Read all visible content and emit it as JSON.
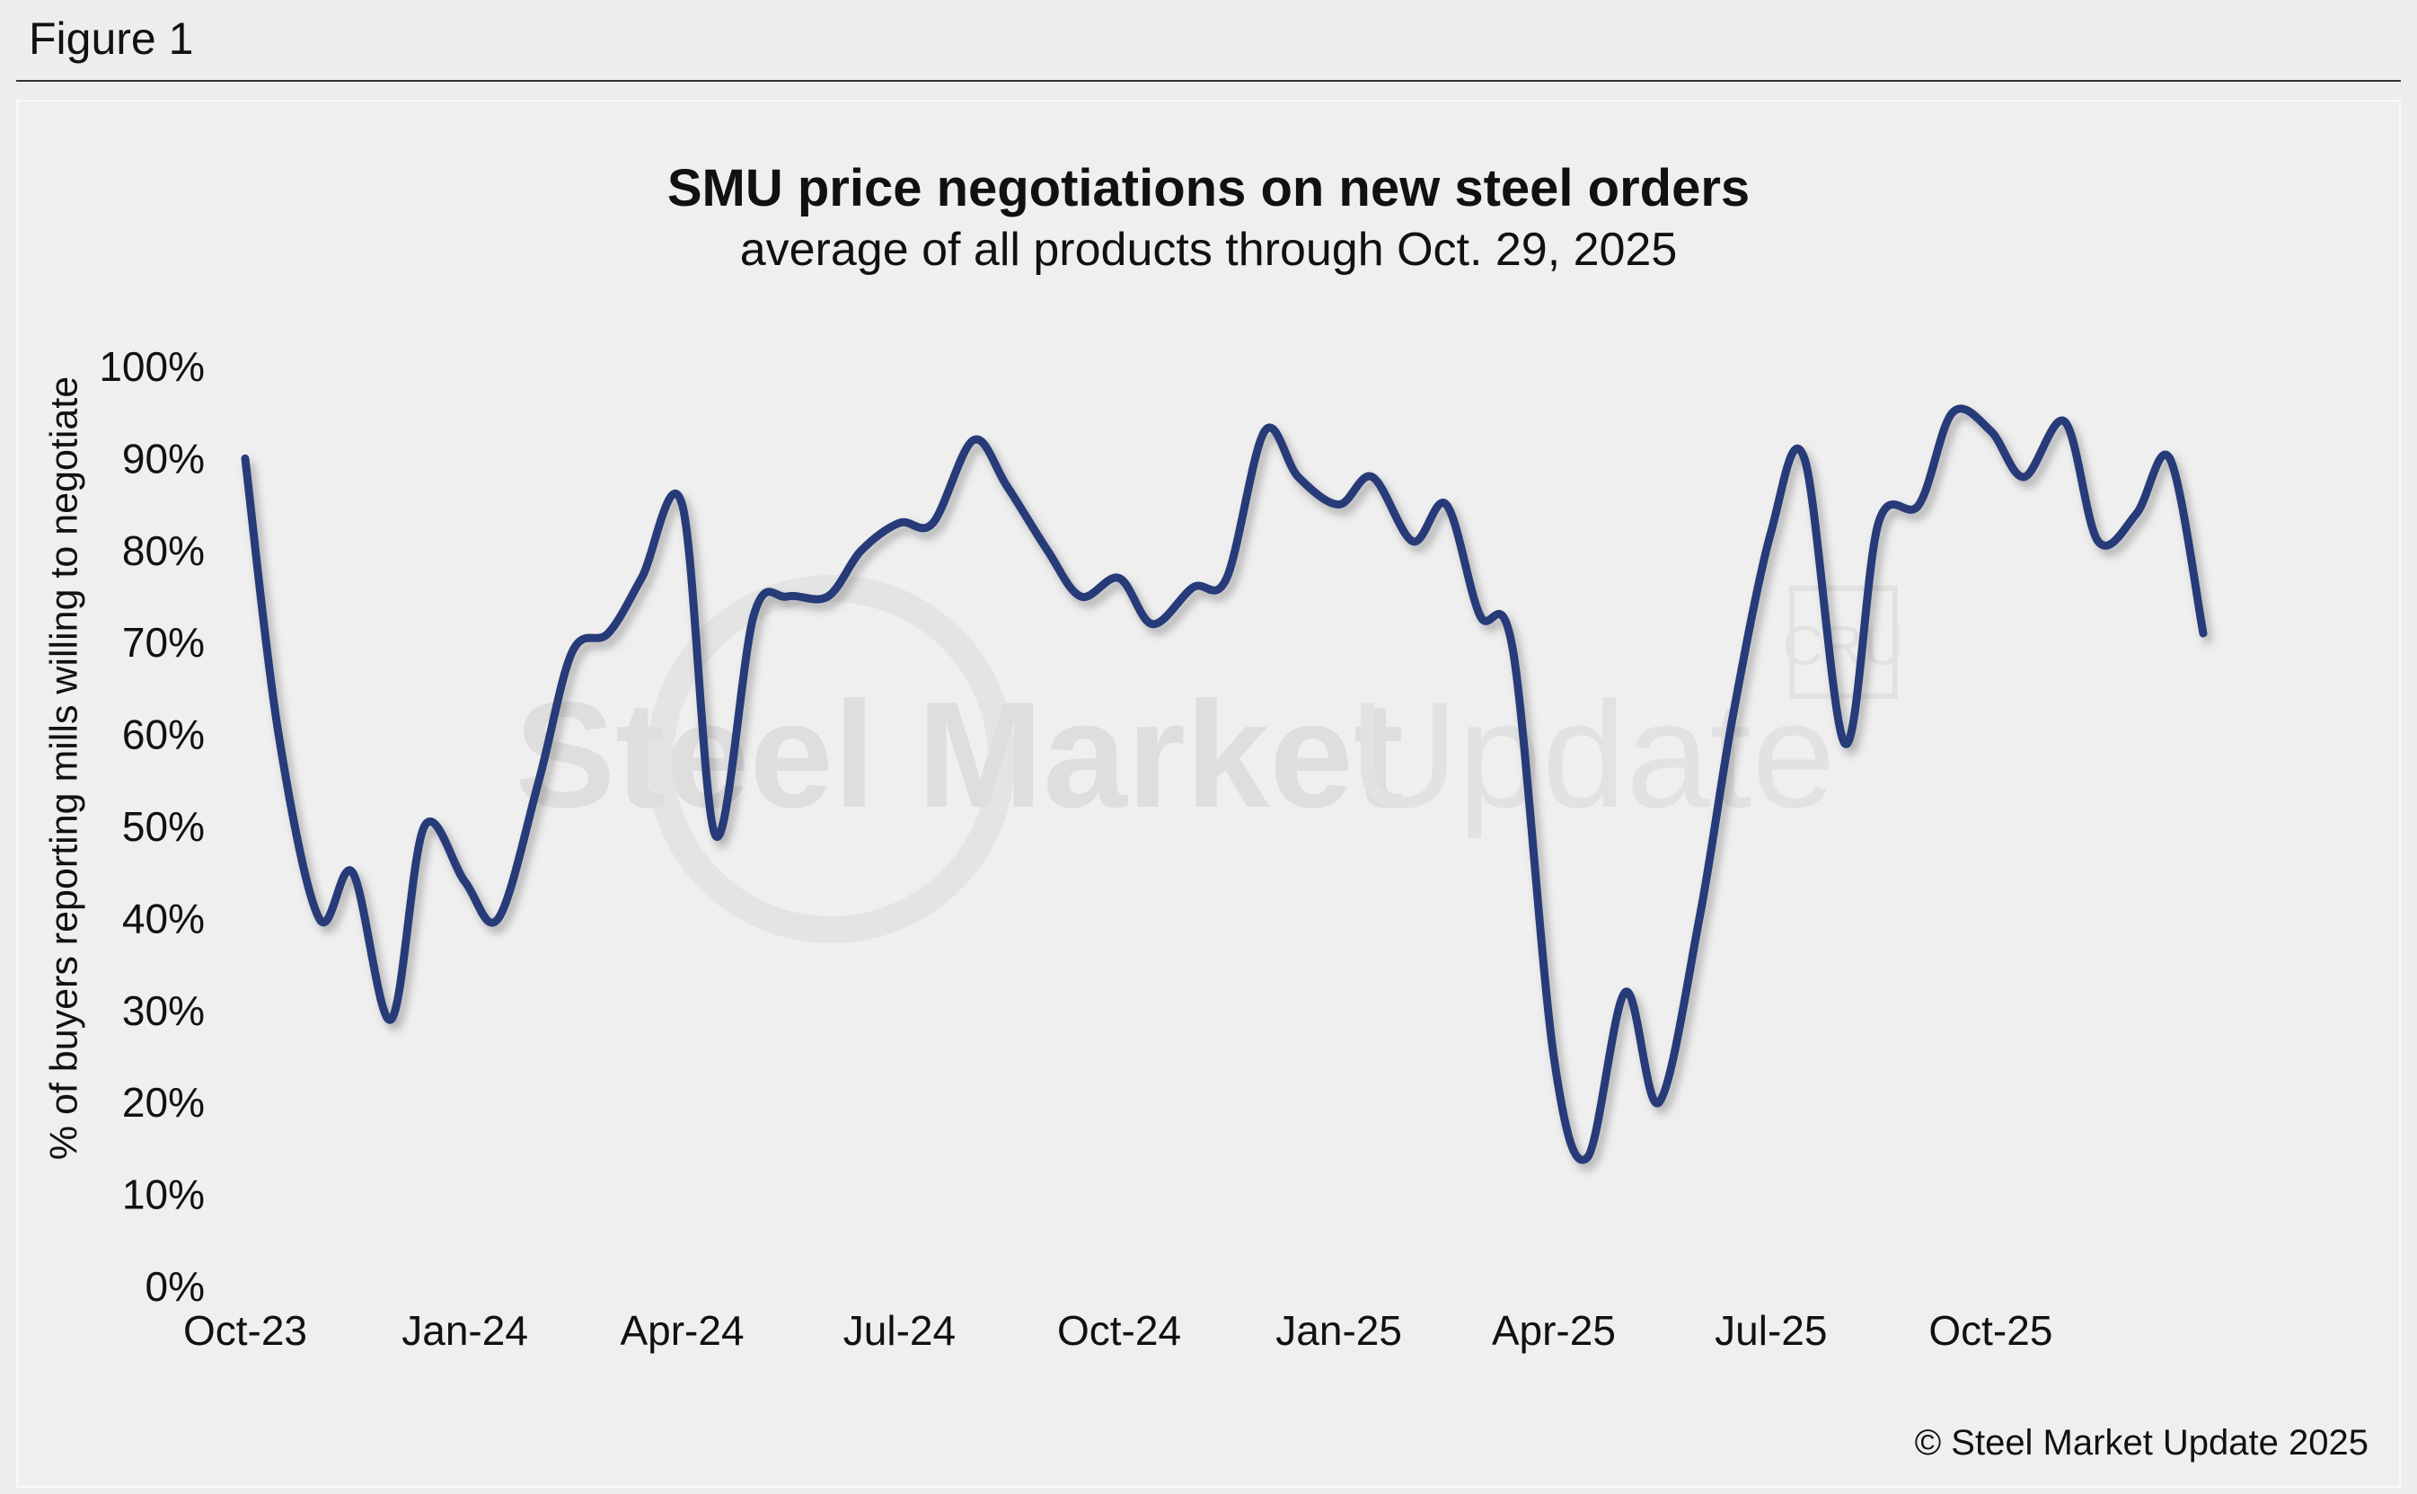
{
  "figure_label": "Figure 1",
  "credit": "© Steel Market Update 2025",
  "watermark": {
    "text_bold": "Steel Market",
    "text_light": "Update",
    "badge": "CRU"
  },
  "colors": {
    "line": "#263a78",
    "background": "#ededed",
    "panel": "#efefef"
  },
  "chart_data": {
    "type": "line",
    "title": "SMU price negotiations on new steel orders",
    "subtitle": "average of all products through Oct. 29, 2025",
    "ylabel": "% of buyers reporting mills willing to negotiate",
    "xlabel": "",
    "ylim": [
      0,
      100
    ],
    "yticks": [
      "0%",
      "10%",
      "20%",
      "30%",
      "40%",
      "50%",
      "60%",
      "70%",
      "80%",
      "90%",
      "100%"
    ],
    "x_ticks": [
      "Oct-23",
      "Jan-24",
      "Apr-24",
      "Jul-24",
      "Oct-24",
      "Jan-25",
      "Apr-25",
      "Jul-25",
      "Oct-25"
    ],
    "grid": false,
    "legend": "none",
    "series": [
      {
        "values": [
          [
            "2023-10-01",
            90
          ],
          [
            "2023-10-15",
            60
          ],
          [
            "2023-11-01",
            40
          ],
          [
            "2023-11-15",
            45
          ],
          [
            "2023-12-01",
            29
          ],
          [
            "2023-12-15",
            50
          ],
          [
            "2024-01-01",
            44
          ],
          [
            "2024-01-15",
            40
          ],
          [
            "2024-02-01",
            55
          ],
          [
            "2024-02-15",
            69
          ],
          [
            "2024-03-01",
            71
          ],
          [
            "2024-03-15",
            77
          ],
          [
            "2024-04-01",
            85
          ],
          [
            "2024-04-15",
            49
          ],
          [
            "2024-05-01",
            73
          ],
          [
            "2024-05-15",
            75
          ],
          [
            "2024-06-01",
            75
          ],
          [
            "2024-06-15",
            80
          ],
          [
            "2024-07-01",
            83
          ],
          [
            "2024-07-15",
            83
          ],
          [
            "2024-08-01",
            92
          ],
          [
            "2024-08-15",
            87
          ],
          [
            "2024-09-01",
            80
          ],
          [
            "2024-09-15",
            75
          ],
          [
            "2024-10-01",
            77
          ],
          [
            "2024-10-15",
            72
          ],
          [
            "2024-11-01",
            76
          ],
          [
            "2024-11-15",
            77
          ],
          [
            "2024-12-01",
            93
          ],
          [
            "2024-12-15",
            88
          ],
          [
            "2025-01-01",
            85
          ],
          [
            "2025-01-15",
            88
          ],
          [
            "2025-02-01",
            81
          ],
          [
            "2025-02-15",
            85
          ],
          [
            "2025-03-01",
            73
          ],
          [
            "2025-03-15",
            69
          ],
          [
            "2025-04-01",
            25
          ],
          [
            "2025-04-15",
            14
          ],
          [
            "2025-05-01",
            32
          ],
          [
            "2025-05-15",
            20
          ],
          [
            "2025-06-01",
            40
          ],
          [
            "2025-06-15",
            62
          ],
          [
            "2025-07-01",
            82
          ],
          [
            "2025-07-15",
            90
          ],
          [
            "2025-08-01",
            59
          ],
          [
            "2025-08-15",
            83
          ],
          [
            "2025-09-01",
            85
          ],
          [
            "2025-09-15",
            95
          ],
          [
            "2025-10-01",
            93
          ],
          [
            "2025-10-15",
            88
          ],
          [
            "2025-11-01",
            94
          ],
          [
            "2025-11-15",
            81
          ],
          [
            "2025-12-01",
            84
          ],
          [
            "2025-12-15",
            90
          ],
          [
            "2025-12-29",
            71
          ]
        ]
      }
    ]
  }
}
